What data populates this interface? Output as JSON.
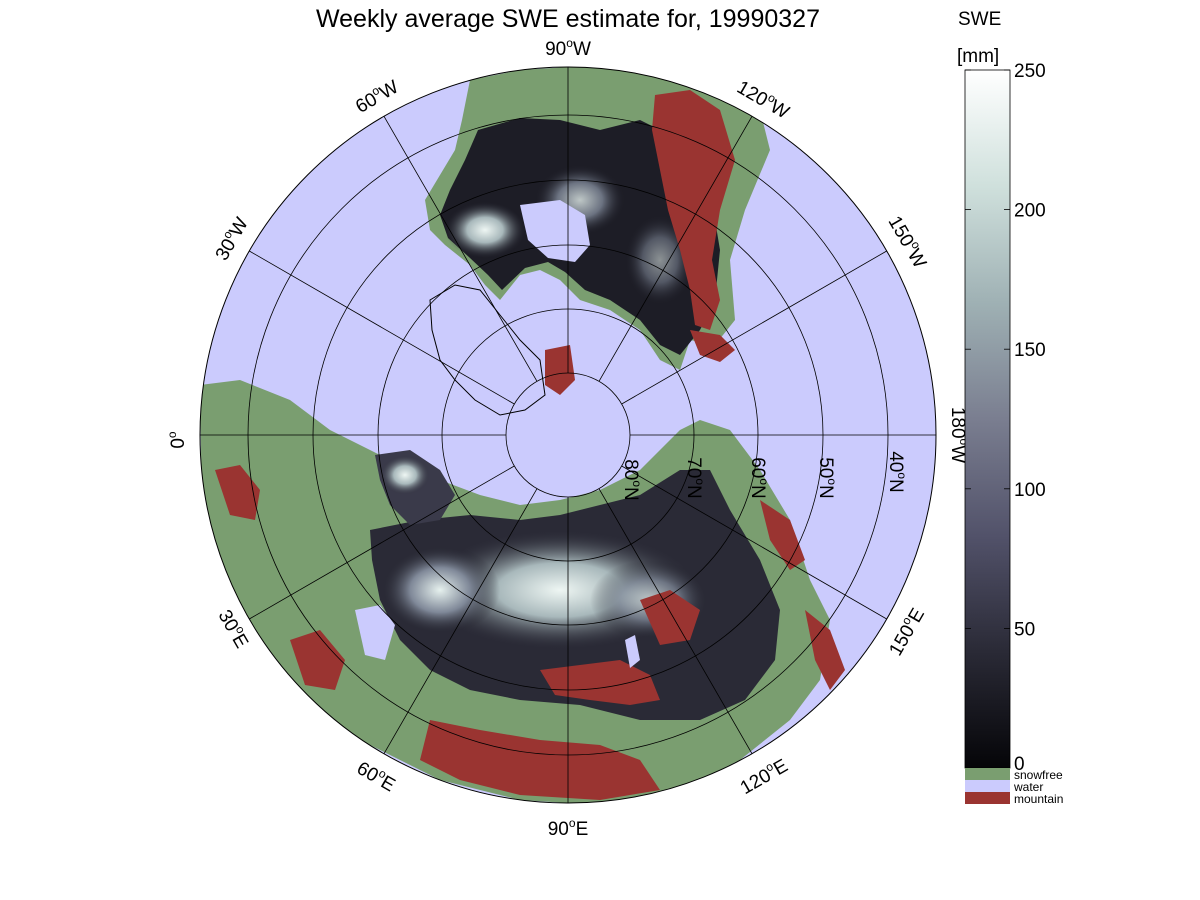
{
  "title": "Weekly average SWE estimate for, 19990327",
  "colors": {
    "water": "#cbcbfd",
    "snowfree": "#7a9e70",
    "mountain": "#9a3431",
    "graticule": "#000000"
  },
  "map": {
    "projection": "north polar stereographic",
    "longitude_labels": [
      {
        "deg": "90",
        "hemi": "W"
      },
      {
        "deg": "120",
        "hemi": "W"
      },
      {
        "deg": "150",
        "hemi": "W"
      },
      {
        "deg": "180",
        "hemi": "W"
      },
      {
        "deg": "150",
        "hemi": "E"
      },
      {
        "deg": "120",
        "hemi": "E"
      },
      {
        "deg": "90",
        "hemi": "E"
      },
      {
        "deg": "60",
        "hemi": "E"
      },
      {
        "deg": "30",
        "hemi": "E"
      },
      {
        "deg": "0",
        "hemi": ""
      },
      {
        "deg": "30",
        "hemi": "W"
      },
      {
        "deg": "60",
        "hemi": "W"
      }
    ],
    "latitude_labels": [
      "80",
      "70",
      "60",
      "50",
      "40"
    ],
    "latitude_hemi": "N",
    "degree_symbol": "o"
  },
  "colorbar": {
    "title_line1": "SWE",
    "title_line2": "[mm]",
    "min": 0,
    "max": 250,
    "ticks": [
      "250",
      "200",
      "150",
      "100",
      "50",
      "0"
    ],
    "gradient_stops": [
      "#050508",
      "#2a2a36",
      "#52526a",
      "#7a7e90",
      "#9fb1b4",
      "#cfe0dc",
      "#ffffff"
    ],
    "categories": [
      {
        "name": "snowfree",
        "color": "#7a9e70"
      },
      {
        "name": "water",
        "color": "#cbcbfd"
      },
      {
        "name": "mountain",
        "color": "#9a3431"
      }
    ]
  }
}
